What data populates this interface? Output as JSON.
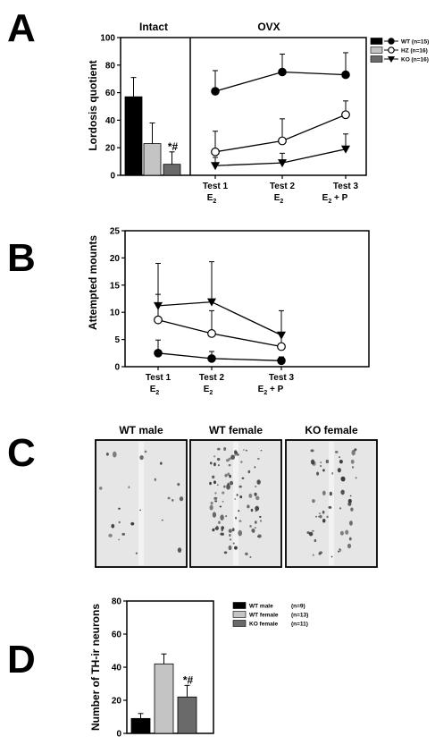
{
  "panels": {
    "A": "A",
    "B": "B",
    "C": "C",
    "D": "D"
  },
  "colors": {
    "wt": "#000000",
    "hz": "#c4c4c4",
    "ko": "#6a6a6a",
    "micrograph_bg": "#e6e6e6",
    "stain": "#3a3a3a"
  },
  "chart_data": [
    {
      "id": "A-intact",
      "type": "bar",
      "title": "Intact",
      "ylabel": "Lordosis quotient",
      "ylim": [
        0,
        100
      ],
      "yticks": [
        "0",
        "20",
        "40",
        "60",
        "80",
        "100"
      ],
      "categories": [
        "WT",
        "HZ",
        "KO"
      ],
      "values": [
        57,
        23,
        8
      ],
      "errors": [
        14,
        15,
        9
      ],
      "annotation": "*#"
    },
    {
      "id": "A-ovx",
      "type": "line",
      "title": "OVX",
      "ylim": [
        0,
        100
      ],
      "x": [
        {
          "test": "Test 1",
          "hormone": "E",
          "sub": "2",
          "suffix": ""
        },
        {
          "test": "Test 2",
          "hormone": "E",
          "sub": "2",
          "suffix": ""
        },
        {
          "test": "Test 3",
          "hormone": "E",
          "sub": "2",
          "suffix": " + P"
        }
      ],
      "series": [
        {
          "name": "WT (n=15)",
          "marker": "filled-circle",
          "values": [
            61,
            75,
            73
          ],
          "errors": [
            15,
            13,
            16
          ]
        },
        {
          "name": "HZ (n=16)",
          "marker": "open-circle",
          "values": [
            17,
            25,
            44
          ],
          "errors": [
            15,
            16,
            10
          ]
        },
        {
          "name": "KO (n=16)",
          "marker": "filled-triangle-down",
          "values": [
            7,
            9,
            19
          ],
          "errors": [
            6,
            7,
            11
          ]
        }
      ],
      "legend": "top-right"
    },
    {
      "id": "B",
      "type": "line",
      "ylabel": "Attempted mounts",
      "ylim": [
        0,
        25
      ],
      "yticks": [
        "0",
        "5",
        "10",
        "15",
        "20",
        "25"
      ],
      "x": [
        {
          "test": "Test 1",
          "hormone": "E",
          "sub": "2",
          "suffix": ""
        },
        {
          "test": "Test 2",
          "hormone": "E",
          "sub": "2",
          "suffix": ""
        },
        {
          "test": "Test 3",
          "hormone": "E",
          "sub": "2",
          "suffix": " + P"
        }
      ],
      "series": [
        {
          "name": "KO",
          "marker": "filled-triangle-down",
          "values": [
            11.2,
            11.9,
            5.8
          ],
          "errors": [
            7.8,
            7.4,
            4.5
          ]
        },
        {
          "name": "HZ",
          "marker": "open-circle",
          "values": [
            8.6,
            6.1,
            3.7
          ],
          "errors": [
            4.7,
            4.2,
            2.6
          ]
        },
        {
          "name": "WT",
          "marker": "filled-circle",
          "values": [
            2.5,
            1.5,
            1.1
          ],
          "errors": [
            2.4,
            1.3,
            0.7
          ]
        }
      ]
    },
    {
      "id": "D",
      "type": "bar",
      "ylabel": "Number of TH-ir neurons",
      "ylim": [
        0,
        80
      ],
      "yticks": [
        "0",
        "20",
        "40",
        "60",
        "80"
      ],
      "categories": [
        "WT male",
        "WT female",
        "KO female"
      ],
      "values": [
        9,
        42,
        22
      ],
      "errors": [
        3,
        6,
        7
      ],
      "annotation": "*#",
      "legend_entries": [
        "WT male",
        "WT female",
        "KO female"
      ],
      "legend_counts": [
        "(n=9)",
        "(n=13)",
        "(n=11)"
      ]
    }
  ],
  "panel_c": {
    "titles": [
      "WT male",
      "WT female",
      "KO female"
    ],
    "density": [
      0.25,
      1.0,
      0.6
    ]
  }
}
